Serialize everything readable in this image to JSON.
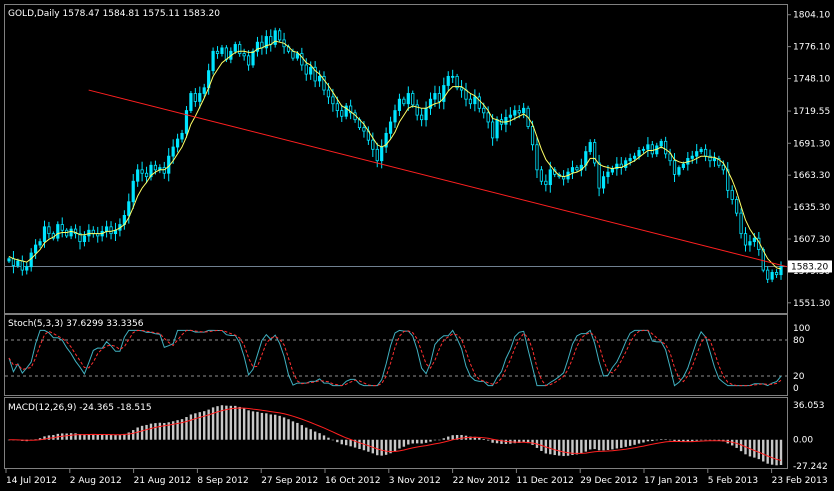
{
  "colors": {
    "background": "#000000",
    "frame": "#808080",
    "candle": "#00e5ff",
    "candle_alt": "#00c8d8",
    "sma": "#ffff66",
    "trendline": "#ff2020",
    "bid_line": "#708090",
    "stoch_main": "#40b0c0",
    "stoch_signal": "#ff3030",
    "stoch_level": "#c0c0c0",
    "macd_hist": "#c8c8c8",
    "macd_signal": "#ff2020",
    "text": "#ffffff"
  },
  "main_panel": {
    "title": "GOLD,Daily  1578.47 1584.81 1575.11 1583.20",
    "price_labels": [
      "1804.10",
      "1776.10",
      "1748.10",
      "1719.55",
      "1691.30",
      "1663.30",
      "1635.30",
      "1607.30",
      "1579.30",
      "1551.30"
    ],
    "current_price": "1583.20",
    "price_range": [
      1545,
      1810
    ]
  },
  "stoch_panel": {
    "title": "Stoch(5,3,3) 37.6299 33.3356",
    "levels": [
      "100",
      "80",
      "20",
      "0"
    ]
  },
  "macd_panel": {
    "title": "MACD(12,26,9) -24.365 -18.515",
    "levels": [
      "36.053",
      "0.00",
      "-27.242"
    ]
  },
  "time_axis": [
    "14 Jul 2012",
    "2 Aug 2012",
    "21 Aug 2012",
    "8 Sep 2012",
    "27 Sep 2012",
    "16 Oct 2012",
    "3 Nov 2012",
    "22 Nov 2012",
    "11 Dec 2012",
    "29 Dec 2012",
    "17 Jan 2013",
    "5 Feb 2013",
    "23 Feb 2013"
  ],
  "chart_data": {
    "type": "candlestick",
    "symbol": "GOLD",
    "timeframe": "Daily",
    "last_bar": {
      "open": 1578.47,
      "high": 1584.81,
      "low": 1575.11,
      "close": 1583.2
    },
    "close_series": [
      1590,
      1584,
      1588,
      1580,
      1583,
      1595,
      1602,
      1605,
      1618,
      1612,
      1608,
      1620,
      1615,
      1610,
      1616,
      1612,
      1605,
      1610,
      1615,
      1612,
      1610,
      1614,
      1618,
      1612,
      1615,
      1620,
      1628,
      1640,
      1658,
      1668,
      1665,
      1662,
      1672,
      1668,
      1670,
      1665,
      1680,
      1688,
      1695,
      1700,
      1720,
      1735,
      1728,
      1735,
      1740,
      1755,
      1772,
      1770,
      1775,
      1765,
      1772,
      1778,
      1770,
      1768,
      1760,
      1772,
      1780,
      1775,
      1785,
      1778,
      1790,
      1782,
      1776,
      1772,
      1766,
      1770,
      1760,
      1752,
      1758,
      1746,
      1750,
      1738,
      1732,
      1726,
      1720,
      1715,
      1724,
      1718,
      1712,
      1705,
      1702,
      1694,
      1686,
      1676,
      1688,
      1700,
      1710,
      1720,
      1730,
      1726,
      1735,
      1725,
      1716,
      1712,
      1722,
      1730,
      1735,
      1728,
      1742,
      1750,
      1750,
      1740,
      1738,
      1730,
      1726,
      1732,
      1722,
      1718,
      1710,
      1696,
      1712,
      1708,
      1714,
      1716,
      1720,
      1718,
      1722,
      1706,
      1690,
      1668,
      1658,
      1655,
      1668,
      1664,
      1662,
      1660,
      1666,
      1670,
      1668,
      1672,
      1684,
      1692,
      1674,
      1652,
      1662,
      1666,
      1669,
      1673,
      1670,
      1676,
      1678,
      1680,
      1685,
      1686,
      1690,
      1682,
      1689,
      1693,
      1682,
      1676,
      1664,
      1670,
      1673,
      1678,
      1680,
      1684,
      1686,
      1680,
      1676,
      1678,
      1672,
      1668,
      1650,
      1642,
      1630,
      1612,
      1602,
      1605,
      1608,
      1598,
      1580,
      1572,
      1578,
      1576,
      1583.2
    ],
    "sma_series": [
      1592,
      1590,
      1589,
      1588,
      1587,
      1590,
      1594,
      1598,
      1604,
      1607,
      1609,
      1612,
      1613,
      1613,
      1614,
      1613,
      1611,
      1611,
      1612,
      1612,
      1612,
      1612,
      1614,
      1614,
      1615,
      1617,
      1620,
      1626,
      1635,
      1645,
      1652,
      1657,
      1663,
      1666,
      1668,
      1668,
      1671,
      1676,
      1682,
      1688,
      1697,
      1708,
      1715,
      1723,
      1731,
      1740,
      1750,
      1756,
      1762,
      1765,
      1768,
      1771,
      1772,
      1772,
      1771,
      1771,
      1774,
      1775,
      1777,
      1778,
      1781,
      1780,
      1779,
      1776,
      1772,
      1771,
      1767,
      1762,
      1760,
      1755,
      1752,
      1747,
      1742,
      1736,
      1730,
      1724,
      1722,
      1719,
      1716,
      1712,
      1708,
      1702,
      1696,
      1690,
      1688,
      1690,
      1695,
      1701,
      1710,
      1716,
      1722,
      1724,
      1723,
      1722,
      1722,
      1724,
      1726,
      1727,
      1731,
      1737,
      1741,
      1741,
      1741,
      1738,
      1735,
      1733,
      1729,
      1725,
      1720,
      1713,
      1712,
      1710,
      1710,
      1711,
      1713,
      1715,
      1717,
      1714,
      1708,
      1697,
      1686,
      1677,
      1672,
      1667,
      1663,
      1662,
      1663,
      1665,
      1666,
      1668,
      1672,
      1678,
      1678,
      1673,
      1671,
      1670,
      1669,
      1670,
      1670,
      1672,
      1674,
      1676,
      1679,
      1682,
      1685,
      1685,
      1686,
      1688,
      1686,
      1683,
      1677,
      1675,
      1674,
      1675,
      1676,
      1678,
      1680,
      1680,
      1679,
      1679,
      1677,
      1674,
      1667,
      1659,
      1649,
      1636,
      1624,
      1616,
      1610,
      1605,
      1597,
      1590,
      1586,
      1582,
      1581
    ],
    "trendline": {
      "from": {
        "x": "2 Aug 2012",
        "y": 1738
      },
      "to": {
        "x": "23 Feb 2013",
        "y": 1583
      }
    },
    "current_price": 1583.2,
    "ylim": [
      1545,
      1810
    ],
    "stochastic": {
      "k": 37.6299,
      "d": 33.3356,
      "levels": [
        80,
        20
      ]
    },
    "macd": {
      "main": -24.365,
      "signal": -18.515,
      "ylim": [
        -27.242,
        36.053
      ]
    }
  }
}
